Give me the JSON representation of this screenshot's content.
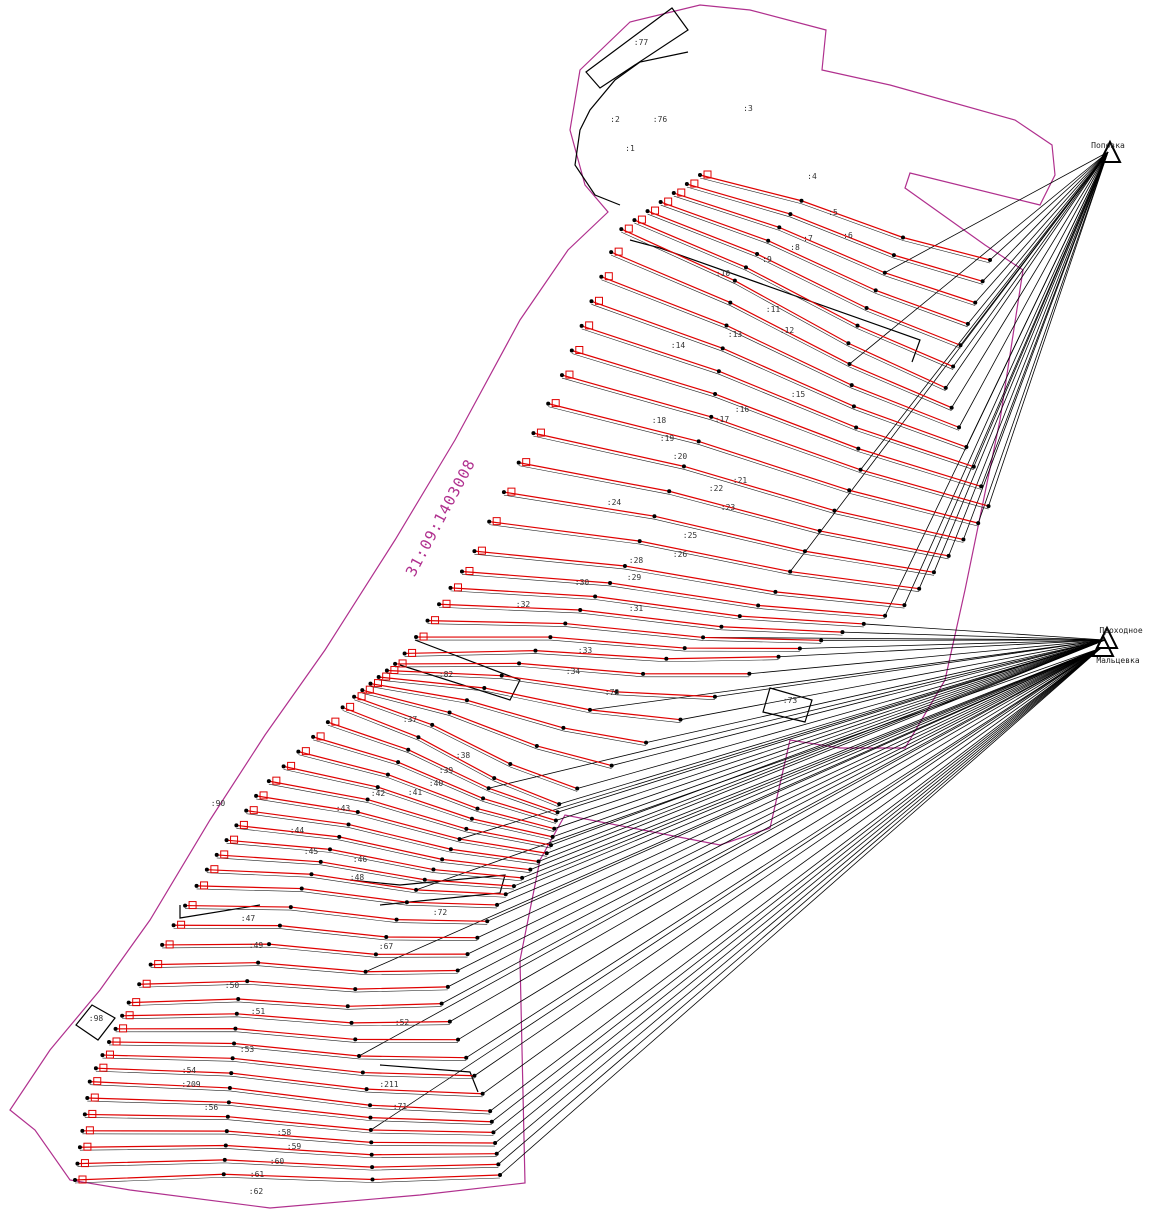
{
  "quarter": "31:09:1403008",
  "stations": [
    "Поповка",
    "Проходное",
    "Мальцевка"
  ],
  "parcels": [
    ":77",
    ":2",
    ":76",
    ":1",
    ":3",
    ":4",
    ":5",
    ":6",
    ":7",
    ":8",
    ":9",
    ":10",
    ":11",
    ":12",
    ":13",
    ":14",
    ":15",
    ":16",
    ":17",
    ":18",
    ":19",
    ":20",
    ":21",
    ":22",
    ":23",
    ":24",
    ":25",
    ":26",
    ":28",
    ":29",
    ":30",
    ":31",
    ":32",
    ":33",
    ":34",
    ":82",
    ":78",
    ":37",
    ":38",
    ":39",
    ":40",
    ":41",
    ":42",
    ":43",
    ":44",
    ":45",
    ":46",
    ":48",
    ":47",
    ":49",
    ":72",
    ":67",
    ":50",
    ":51",
    ":52",
    ":53",
    ":54",
    ":209",
    ":211",
    ":71",
    ":56",
    ":58",
    ":59",
    ":60",
    ":61",
    ":62",
    ":98",
    ":73",
    ":90"
  ]
}
